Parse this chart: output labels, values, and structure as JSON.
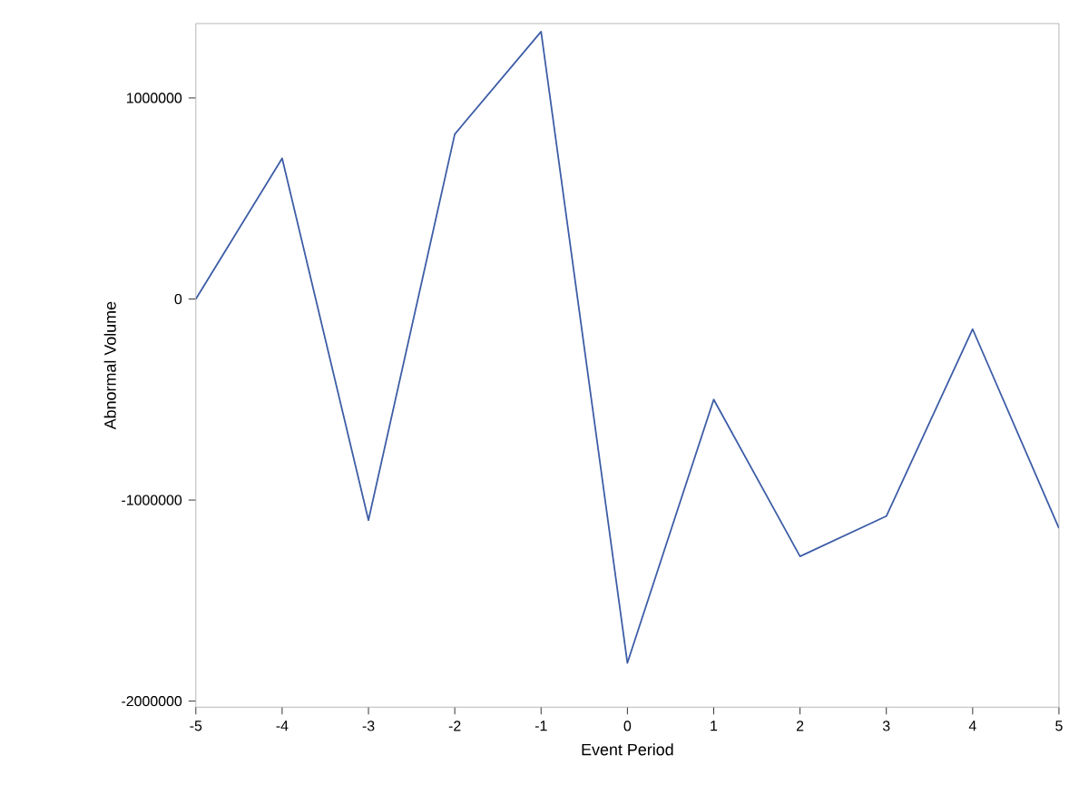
{
  "chart_data": {
    "type": "line",
    "xlabel": "Event Period",
    "ylabel": "Abnormal Volume",
    "x": [
      -5,
      -4,
      -3,
      -2,
      -1,
      0,
      1,
      2,
      3,
      4,
      5
    ],
    "series": [
      {
        "color": "#3d5da6",
        "values": [
          0,
          700000,
          -1100000,
          820000,
          1330000,
          -1810000,
          -500000,
          -1280000,
          -1080000,
          -150000,
          -1140000
        ]
      }
    ],
    "xlim": [
      -5,
      5
    ],
    "ylim": [
      -2030000,
      1370000
    ],
    "xticks": [
      -5,
      -4,
      -3,
      -2,
      -1,
      0,
      1,
      2,
      3,
      4,
      5
    ],
    "yticks": [
      -2000000,
      -1000000,
      0,
      1000000
    ],
    "grid": false,
    "marker": "none",
    "line_style": "solid"
  }
}
